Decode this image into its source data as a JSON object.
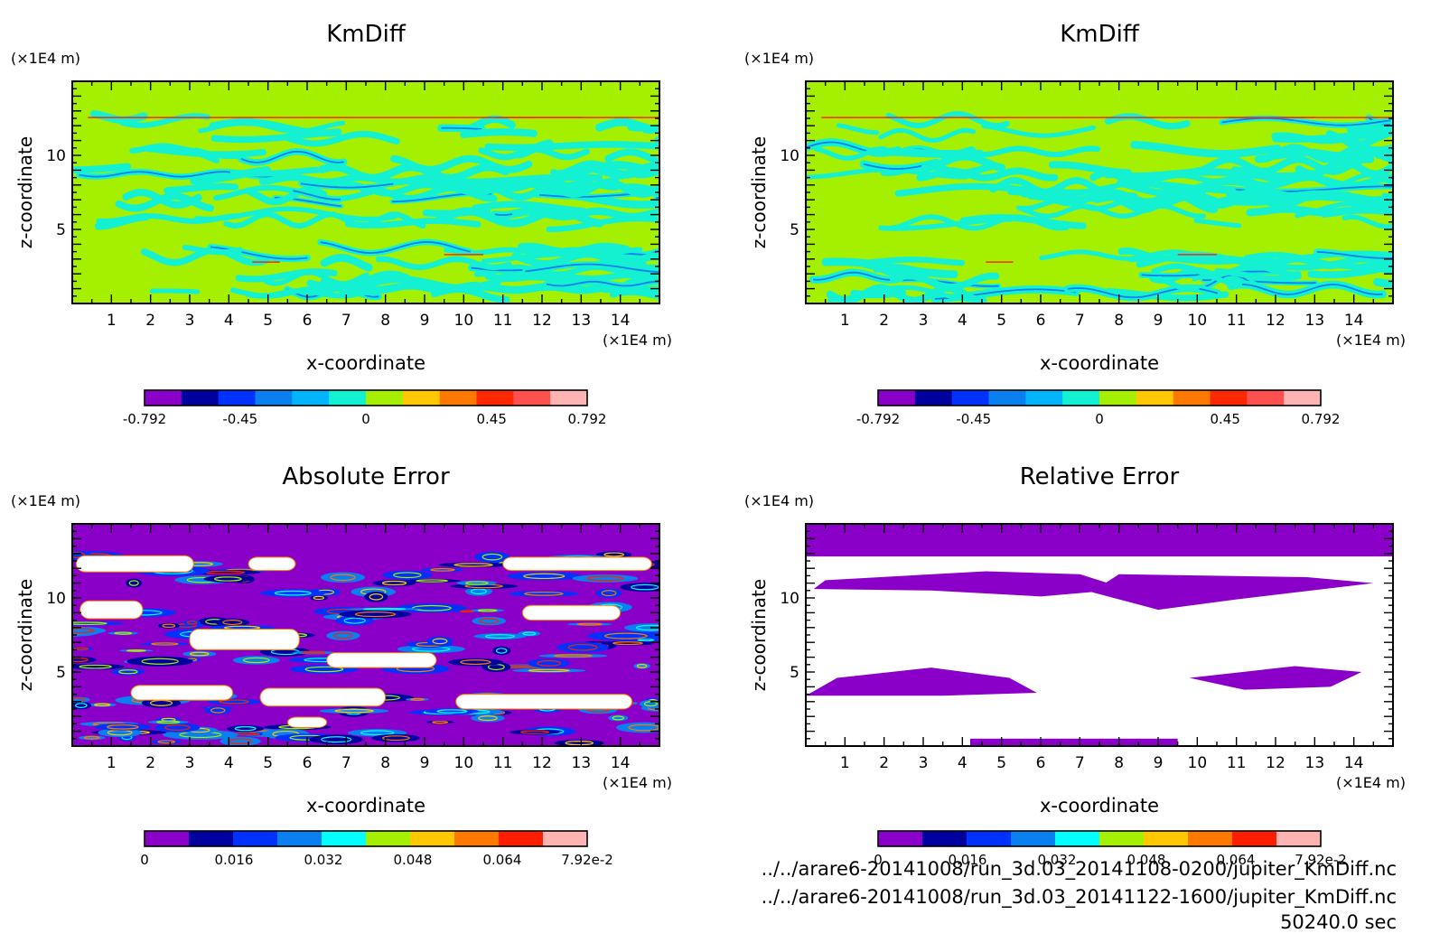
{
  "time_label": "50240.0 sec",
  "files": [
    "../../arare6-20141008/run_3d.03_20141108-0200/jupiter_KmDiff.nc",
    "../../arare6-20141008/run_3d.03_20141122-1600/jupiter_KmDiff.nc"
  ],
  "chart_data": [
    {
      "type": "heatmap",
      "title": "KmDiff",
      "xlabel": "x-coordinate",
      "ylabel": "z-coordinate",
      "x_unit": "(×1E4 m)",
      "y_unit": "(×1E4 m)",
      "xlim": [
        0,
        15
      ],
      "ylim": [
        0,
        15
      ],
      "xticks": [
        "1",
        "2",
        "3",
        "4",
        "5",
        "6",
        "7",
        "8",
        "9",
        "10",
        "11",
        "12",
        "13",
        "14"
      ],
      "yticks": [
        "5",
        "10"
      ],
      "background": "#a5f000",
      "features": "banded",
      "colorbar": {
        "range": [
          -0.792,
          0.792
        ],
        "ticks": [
          "-0.792",
          "-0.45",
          "0",
          "0.45",
          "0.792"
        ],
        "colors": [
          "#8a00c8",
          "#00009e",
          "#0032ff",
          "#0a7ff0",
          "#00b4ff",
          "#14f0d2",
          "#a5f000",
          "#ffc800",
          "#ff7800",
          "#ff2800",
          "#ff5050",
          "#ffb4b4"
        ]
      }
    },
    {
      "type": "heatmap",
      "title": "KmDiff",
      "xlabel": "x-coordinate",
      "ylabel": "z-coordinate",
      "x_unit": "(×1E4 m)",
      "y_unit": "(×1E4 m)",
      "xlim": [
        0,
        15
      ],
      "ylim": [
        0,
        15
      ],
      "xticks": [
        "1",
        "2",
        "3",
        "4",
        "5",
        "6",
        "7",
        "8",
        "9",
        "10",
        "11",
        "12",
        "13",
        "14"
      ],
      "yticks": [
        "5",
        "10"
      ],
      "background": "#a5f000",
      "features": "banded",
      "colorbar": {
        "range": [
          -0.792,
          0.792
        ],
        "ticks": [
          "-0.792",
          "-0.45",
          "0",
          "0.45",
          "0.792"
        ],
        "colors": [
          "#8a00c8",
          "#00009e",
          "#0032ff",
          "#0a7ff0",
          "#00b4ff",
          "#14f0d2",
          "#a5f000",
          "#ffc800",
          "#ff7800",
          "#ff2800",
          "#ff5050",
          "#ffb4b4"
        ]
      }
    },
    {
      "type": "heatmap",
      "title": "Absolute Error",
      "xlabel": "x-coordinate",
      "ylabel": "z-coordinate",
      "x_unit": "(×1E4 m)",
      "y_unit": "(×1E4 m)",
      "xlim": [
        0,
        15
      ],
      "ylim": [
        0,
        15
      ],
      "xticks": [
        "1",
        "2",
        "3",
        "4",
        "5",
        "6",
        "7",
        "8",
        "9",
        "10",
        "11",
        "12",
        "13",
        "14"
      ],
      "yticks": [
        "5",
        "10"
      ],
      "background": "#8a00c8",
      "features": "abs",
      "colorbar": {
        "range": [
          0,
          0.0792
        ],
        "ticks": [
          "0",
          "0.016",
          "0.032",
          "0.048",
          "0.064",
          "7.92e-2"
        ],
        "colors": [
          "#8a00c8",
          "#00009e",
          "#0032ff",
          "#0a7ff0",
          "#00ffff",
          "#a5f000",
          "#ffc800",
          "#ff7800",
          "#ff1e00",
          "#ffb4b4"
        ]
      }
    },
    {
      "type": "heatmap",
      "title": "Relative Error",
      "xlabel": "x-coordinate",
      "ylabel": "z-coordinate",
      "x_unit": "(×1E4 m)",
      "y_unit": "(×1E4 m)",
      "xlim": [
        0,
        15
      ],
      "ylim": [
        0,
        15
      ],
      "xticks": [
        "1",
        "2",
        "3",
        "4",
        "5",
        "6",
        "7",
        "8",
        "9",
        "10",
        "11",
        "12",
        "13",
        "14"
      ],
      "yticks": [
        "5",
        "10"
      ],
      "background": "#ffffff",
      "features": "rel",
      "colorbar": {
        "range": [
          0,
          0.0792
        ],
        "ticks": [
          "0",
          "0.016",
          "0.032",
          "0.048",
          "0.064",
          "7.92e-2"
        ],
        "colors": [
          "#8a00c8",
          "#00009e",
          "#0032ff",
          "#0a7ff0",
          "#00ffff",
          "#a5f000",
          "#ffc800",
          "#ff7800",
          "#ff1e00",
          "#ffb4b4"
        ]
      }
    }
  ]
}
